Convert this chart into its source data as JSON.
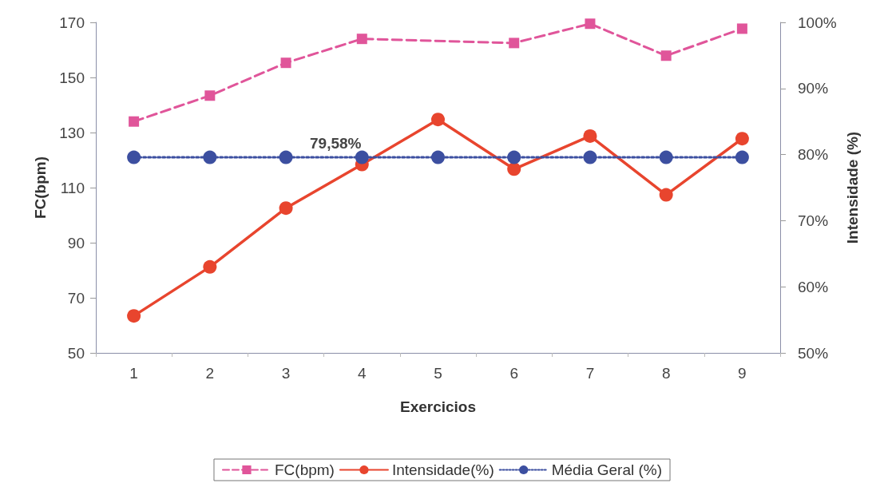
{
  "chart_data": {
    "type": "line",
    "xlabel": "Exercicios",
    "ylabel": "FC(bpm)",
    "y2label": "Intensidade (%)",
    "categories": [
      "1",
      "2",
      "3",
      "4",
      "5",
      "6",
      "7",
      "8",
      "9"
    ],
    "series": [
      {
        "name": "FC(bpm)",
        "color": "#e0559a",
        "marker": "square",
        "line_style": "dashed",
        "values": [
          134,
          143.4,
          155.3,
          164,
          null,
          162.5,
          169.5,
          157.9,
          167.7
        ]
      },
      {
        "name": "Intensidade(%)",
        "color": "#e8452e",
        "marker": "circle",
        "line_style": "solid",
        "axis": "y2",
        "values": [
          55.6,
          63,
          71.9,
          78.5,
          85.3,
          77.8,
          82.8,
          73.9,
          82.4
        ]
      },
      {
        "name": "Média Geral (%)",
        "color": "#3c4fa0",
        "marker": "circle",
        "line_style": "dotted",
        "axis": "y2",
        "values": [
          79.58,
          79.58,
          79.58,
          79.58,
          79.58,
          79.58,
          79.58,
          79.58,
          79.58
        ]
      }
    ],
    "ylim": [
      50,
      170
    ],
    "yticks": [
      50,
      70,
      90,
      110,
      130,
      150,
      170
    ],
    "y2lim": [
      50,
      100
    ],
    "y2ticks": [
      {
        "value": 50,
        "label": "50%"
      },
      {
        "value": 60,
        "label": "60%"
      },
      {
        "value": 70,
        "label": "70%"
      },
      {
        "value": 80,
        "label": "80%"
      },
      {
        "value": 90,
        "label": "90%"
      },
      {
        "value": 100,
        "label": "100%"
      }
    ],
    "annotations": [
      "79,58%"
    ],
    "grid": false,
    "legend": "bottom"
  }
}
